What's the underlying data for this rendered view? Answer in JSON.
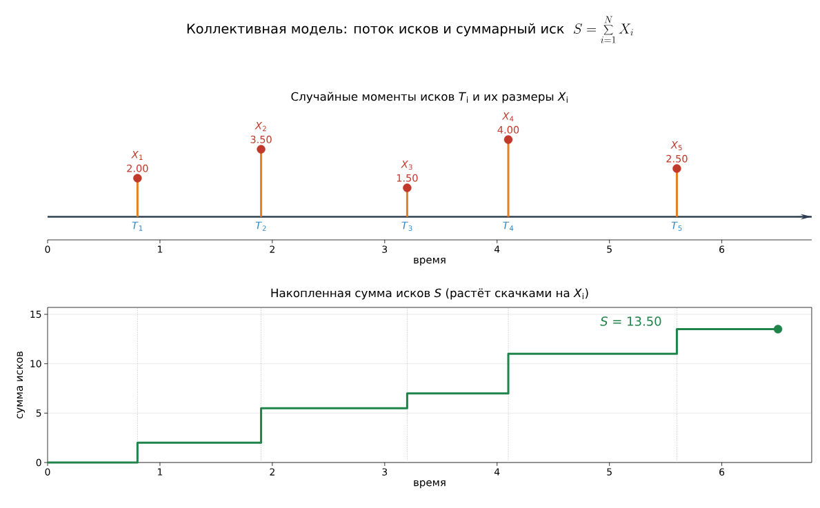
{
  "chart_data": [
    {
      "type": "lollipop",
      "title": "Коллективная модель: поток исков и суммарный иск",
      "subtitle": "Случайные моменты исков *T*$_{i}$ и их размеры *X*$_{i}$",
      "xlabel": "время",
      "xlim": [
        0,
        6.8
      ],
      "xticks": [
        0,
        1,
        2,
        3,
        4,
        5,
        6
      ],
      "tick_labels": "x",
      "marker": "circle",
      "color": "#c0392b",
      "x": [
        0.8,
        1.9,
        3.2,
        4.1,
        5.6
      ],
      "values": [
        2.0,
        3.5,
        1.5,
        4.0,
        2.5
      ],
      "value_labels": [
        "2.00",
        "3.50",
        "1.50",
        "4.00",
        "2.50"
      ],
      "ref_lines": [
        {
          "axis": "y",
          "value": 0,
          "color": "#2c3e50"
        }
      ],
      "annotations": [
        "S=\\sum_{i=1}^{N} X_i",
        {
          "text": "*X*$_{1}$",
          "x": 0.8,
          "y": 2.0
        },
        {
          "text": "*X*$_{2}$",
          "x": 1.9,
          "y": 3.5
        },
        {
          "text": "*X*$_{3}$",
          "x": 3.2,
          "y": 1.5
        },
        {
          "text": "*X*$_{4}$",
          "x": 4.1,
          "y": 4.0
        },
        {
          "text": "*X*$_{5}$",
          "x": 5.6,
          "y": 2.5
        },
        {
          "text": "*T*$_{1}$",
          "x": 0.8,
          "y": 0
        },
        {
          "text": "*T*$_{2}$",
          "x": 1.9,
          "y": 0
        },
        {
          "text": "*T*$_{3}$",
          "x": 3.2,
          "y": 0
        },
        {
          "text": "*T*$_{4}$",
          "x": 4.1,
          "y": 0
        },
        {
          "text": "*T*$_{5}$",
          "x": 5.6,
          "y": 0
        }
      ]
    },
    {
      "type": "step",
      "title": "Накопленная сумма исков *S* (растёт скачками на *X*$_{i}$)",
      "xlabel": "время",
      "ylabel": "сумма исков",
      "xlim": [
        0,
        6.8
      ],
      "xticks": [
        0,
        1,
        2,
        3,
        4,
        5,
        6
      ],
      "ylim": [
        0,
        15.7
      ],
      "yticks": [
        0,
        5,
        10,
        15
      ],
      "grid": "y",
      "ref_lines": [
        {
          "axis": "x",
          "value": 0.8,
          "color": "#b0b0b0",
          "line_style": "dotted"
        },
        {
          "axis": "x",
          "value": 1.9,
          "color": "#b0b0b0",
          "line_style": "dotted"
        },
        {
          "axis": "x",
          "value": 3.2,
          "color": "#b0b0b0",
          "line_style": "dotted"
        },
        {
          "axis": "x",
          "value": 4.1,
          "color": "#b0b0b0",
          "line_style": "dotted"
        },
        {
          "axis": "x",
          "value": 5.6,
          "color": "#b0b0b0",
          "line_style": "dotted"
        }
      ],
      "series": [
        {
          "type": "step",
          "color": "#1e8449",
          "x": [
            0,
            0.8,
            1.9,
            3.2,
            4.1,
            5.6,
            6.5
          ],
          "values": [
            0,
            2.0,
            5.5,
            7.0,
            11.0,
            13.5,
            13.5
          ]
        },
        {
          "type": "scatter",
          "marker": "circle",
          "color": "#1e8449",
          "x": [
            6.5
          ],
          "values": [
            13.5
          ]
        }
      ],
      "annotations": [
        "*S* = 13.50"
      ]
    }
  ]
}
